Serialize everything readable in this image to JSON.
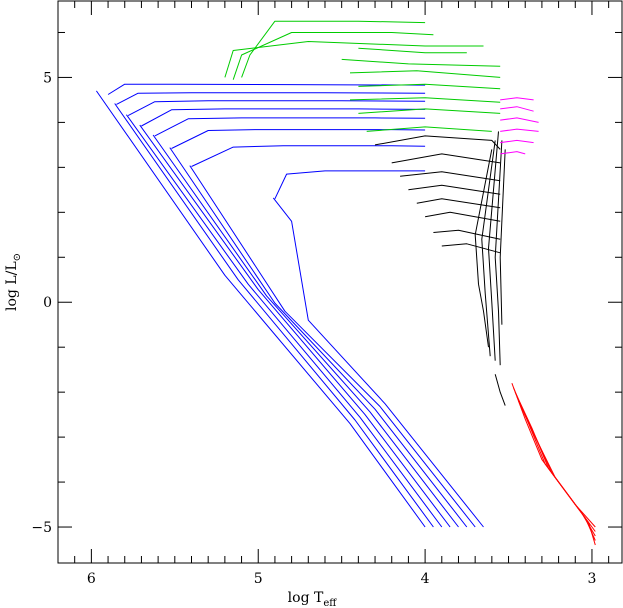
{
  "chart_data": {
    "type": "line",
    "xlabel": "log T",
    "xlabel_sub": "eff",
    "ylabel": "log L/L",
    "ylabel_sub": "⊙",
    "xlim": [
      6.2,
      2.82
    ],
    "ylim": [
      -5.8,
      6.7
    ],
    "x_reversed": true,
    "grid": false,
    "xticks": [
      6,
      5,
      4,
      3
    ],
    "xtick_labels": [
      "6",
      "5",
      "4",
      "3"
    ],
    "yticks": [
      5,
      0,
      -5
    ],
    "ytick_labels": [
      "5",
      "0",
      "−5"
    ],
    "colors": {
      "blue": "#0000ff",
      "green": "#00cc00",
      "black": "#000000",
      "magenta": "#ff00ff",
      "red": "#ff0000",
      "frame": "#000000"
    },
    "series": [
      {
        "color": "blue",
        "description_key": "hot-sequence",
        "lines": [
          [
            [
              5.9,
              4.62
            ],
            [
              5.8,
              4.85
            ],
            [
              5.5,
              4.85
            ],
            [
              4.8,
              4.84
            ],
            [
              4.0,
              4.83
            ]
          ],
          [
            [
              5.85,
              4.4
            ],
            [
              5.72,
              4.65
            ],
            [
              5.4,
              4.66
            ],
            [
              4.6,
              4.66
            ],
            [
              4.0,
              4.65
            ]
          ],
          [
            [
              5.78,
              4.15
            ],
            [
              5.62,
              4.46
            ],
            [
              5.3,
              4.48
            ],
            [
              4.5,
              4.48
            ],
            [
              4.0,
              4.47
            ]
          ],
          [
            [
              5.7,
              3.92
            ],
            [
              5.52,
              4.28
            ],
            [
              5.2,
              4.3
            ],
            [
              4.4,
              4.3
            ],
            [
              4.0,
              4.29
            ]
          ],
          [
            [
              5.62,
              3.7
            ],
            [
              5.42,
              4.08
            ],
            [
              5.1,
              4.1
            ],
            [
              4.3,
              4.1
            ],
            [
              4.0,
              4.09
            ]
          ],
          [
            [
              5.52,
              3.42
            ],
            [
              5.3,
              3.82
            ],
            [
              5.0,
              3.84
            ],
            [
              4.2,
              3.84
            ],
            [
              4.0,
              3.83
            ]
          ],
          [
            [
              5.4,
              3.02
            ],
            [
              5.15,
              3.45
            ],
            [
              4.85,
              3.48
            ],
            [
              4.2,
              3.48
            ],
            [
              4.0,
              3.47
            ]
          ],
          [
            [
              4.9,
              2.3
            ],
            [
              4.83,
              2.85
            ],
            [
              4.6,
              2.92
            ],
            [
              4.2,
              2.92
            ],
            [
              4.0,
              2.92
            ]
          ]
        ],
        "diagonals": [
          [
            [
              5.97,
              4.7
            ],
            [
              5.2,
              0.6
            ],
            [
              4.45,
              -2.7
            ],
            [
              4.0,
              -5.0
            ]
          ],
          [
            [
              5.86,
              4.42
            ],
            [
              5.12,
              0.5
            ],
            [
              4.42,
              -2.62
            ],
            [
              3.95,
              -5.0
            ]
          ],
          [
            [
              5.79,
              4.17
            ],
            [
              5.06,
              0.4
            ],
            [
              4.39,
              -2.56
            ],
            [
              3.9,
              -5.0
            ]
          ],
          [
            [
              5.71,
              3.94
            ],
            [
              5.0,
              0.28
            ],
            [
              4.36,
              -2.5
            ],
            [
              3.85,
              -5.0
            ]
          ],
          [
            [
              5.63,
              3.72
            ],
            [
              4.95,
              0.14
            ],
            [
              4.33,
              -2.44
            ],
            [
              3.8,
              -5.0
            ]
          ],
          [
            [
              5.53,
              3.44
            ],
            [
              4.9,
              -0.02
            ],
            [
              4.3,
              -2.38
            ],
            [
              3.75,
              -5.0
            ]
          ],
          [
            [
              5.41,
              3.04
            ],
            [
              4.84,
              -0.2
            ],
            [
              4.27,
              -2.32
            ],
            [
              3.7,
              -5.0
            ]
          ],
          [
            [
              4.91,
              2.32
            ],
            [
              4.8,
              1.8
            ],
            [
              4.7,
              -0.4
            ],
            [
              4.24,
              -2.26
            ],
            [
              3.65,
              -5.0
            ]
          ]
        ]
      },
      {
        "color": "green",
        "description_key": "upper-tracks",
        "lines": [
          [
            [
              5.1,
              5.0
            ],
            [
              5.05,
              5.5
            ],
            [
              4.9,
              6.25
            ],
            [
              4.4,
              6.25
            ],
            [
              4.0,
              6.22
            ]
          ],
          [
            [
              5.15,
              4.95
            ],
            [
              5.1,
              5.5
            ],
            [
              4.8,
              6.0
            ],
            [
              4.2,
              6.0
            ],
            [
              3.95,
              5.95
            ]
          ],
          [
            [
              5.2,
              5.0
            ],
            [
              5.15,
              5.6
            ],
            [
              4.7,
              5.8
            ],
            [
              4.0,
              5.7
            ],
            [
              3.65,
              5.7
            ]
          ],
          [
            [
              4.4,
              5.65
            ],
            [
              4.0,
              5.55
            ],
            [
              3.75,
              5.55
            ]
          ],
          [
            [
              4.5,
              5.4
            ],
            [
              4.1,
              5.3
            ],
            [
              3.55,
              5.25
            ]
          ],
          [
            [
              4.45,
              5.1
            ],
            [
              4.05,
              5.15
            ],
            [
              3.55,
              5.0
            ]
          ],
          [
            [
              4.4,
              4.8
            ],
            [
              4.0,
              4.85
            ],
            [
              3.55,
              4.75
            ]
          ],
          [
            [
              4.45,
              4.5
            ],
            [
              4.0,
              4.55
            ],
            [
              3.55,
              4.45
            ]
          ],
          [
            [
              4.4,
              4.2
            ],
            [
              4.0,
              4.3
            ],
            [
              3.55,
              4.2
            ]
          ],
          [
            [
              4.35,
              3.8
            ],
            [
              4.0,
              3.9
            ],
            [
              3.6,
              3.8
            ]
          ]
        ]
      },
      {
        "color": "black",
        "description_key": "mid-tracks",
        "lines": [
          [
            [
              4.3,
              3.5
            ],
            [
              4.0,
              3.7
            ],
            [
              3.6,
              3.6
            ],
            [
              3.55,
              3.4
            ]
          ],
          [
            [
              4.2,
              3.1
            ],
            [
              3.9,
              3.3
            ],
            [
              3.55,
              3.1
            ]
          ],
          [
            [
              4.15,
              2.8
            ],
            [
              3.9,
              2.9
            ],
            [
              3.55,
              2.7
            ]
          ],
          [
            [
              4.1,
              2.5
            ],
            [
              3.9,
              2.6
            ],
            [
              3.55,
              2.4
            ]
          ],
          [
            [
              4.05,
              2.2
            ],
            [
              3.9,
              2.3
            ],
            [
              3.55,
              2.1
            ]
          ],
          [
            [
              4.0,
              1.9
            ],
            [
              3.85,
              2.0
            ],
            [
              3.55,
              1.8
            ]
          ],
          [
            [
              3.95,
              1.55
            ],
            [
              3.8,
              1.6
            ],
            [
              3.55,
              1.4
            ]
          ],
          [
            [
              3.9,
              1.25
            ],
            [
              3.75,
              1.3
            ],
            [
              3.55,
              1.1
            ]
          ],
          [
            [
              3.6,
              3.4
            ],
            [
              3.7,
              1.5
            ],
            [
              3.68,
              0.4
            ],
            [
              3.65,
              -0.2
            ],
            [
              3.62,
              -1.0
            ]
          ],
          [
            [
              3.58,
              3.6
            ],
            [
              3.66,
              1.4
            ],
            [
              3.64,
              0.2
            ],
            [
              3.61,
              -1.2
            ]
          ],
          [
            [
              3.56,
              3.8
            ],
            [
              3.62,
              1.2
            ],
            [
              3.6,
              0.0
            ],
            [
              3.58,
              -1.3
            ]
          ],
          [
            [
              3.54,
              3.6
            ],
            [
              3.58,
              1.0
            ],
            [
              3.56,
              -0.2
            ],
            [
              3.55,
              -1.4
            ]
          ],
          [
            [
              3.52,
              3.4
            ],
            [
              3.55,
              1.0
            ],
            [
              3.54,
              -0.5
            ]
          ],
          [
            [
              3.58,
              -1.6
            ],
            [
              3.55,
              -2.0
            ],
            [
              3.52,
              -2.3
            ]
          ]
        ]
      },
      {
        "color": "magenta",
        "description_key": "cool-cluster",
        "lines": [
          [
            [
              3.55,
              4.5
            ],
            [
              3.45,
              4.55
            ],
            [
              3.35,
              4.5
            ]
          ],
          [
            [
              3.55,
              4.3
            ],
            [
              3.45,
              4.35
            ],
            [
              3.35,
              4.25
            ]
          ],
          [
            [
              3.55,
              4.05
            ],
            [
              3.45,
              4.1
            ],
            [
              3.32,
              4.0
            ]
          ],
          [
            [
              3.55,
              3.8
            ],
            [
              3.45,
              3.85
            ],
            [
              3.32,
              3.8
            ]
          ],
          [
            [
              3.55,
              3.55
            ],
            [
              3.45,
              3.6
            ],
            [
              3.35,
              3.55
            ]
          ],
          [
            [
              3.55,
              3.3
            ],
            [
              3.45,
              3.35
            ],
            [
              3.4,
              3.3
            ]
          ]
        ]
      },
      {
        "color": "red",
        "description_key": "low-tracks",
        "lines": [
          [
            [
              3.48,
              -1.8
            ],
            [
              3.4,
              -2.6
            ],
            [
              3.3,
              -3.5
            ],
            [
              3.1,
              -4.5
            ],
            [
              2.98,
              -5.0
            ]
          ],
          [
            [
              3.47,
              -1.9
            ],
            [
              3.38,
              -2.7
            ],
            [
              3.28,
              -3.6
            ],
            [
              3.08,
              -4.6
            ],
            [
              2.98,
              -5.1
            ]
          ],
          [
            [
              3.46,
              -2.0
            ],
            [
              3.36,
              -2.8
            ],
            [
              3.26,
              -3.7
            ],
            [
              3.06,
              -4.7
            ],
            [
              2.98,
              -5.2
            ]
          ],
          [
            [
              3.45,
              -2.1
            ],
            [
              3.35,
              -2.9
            ],
            [
              3.24,
              -3.8
            ],
            [
              3.04,
              -4.8
            ],
            [
              2.98,
              -5.3
            ]
          ],
          [
            [
              3.44,
              -2.2
            ],
            [
              3.34,
              -3.0
            ],
            [
              3.22,
              -3.9
            ],
            [
              3.02,
              -4.9
            ],
            [
              2.98,
              -5.4
            ]
          ]
        ]
      }
    ]
  }
}
